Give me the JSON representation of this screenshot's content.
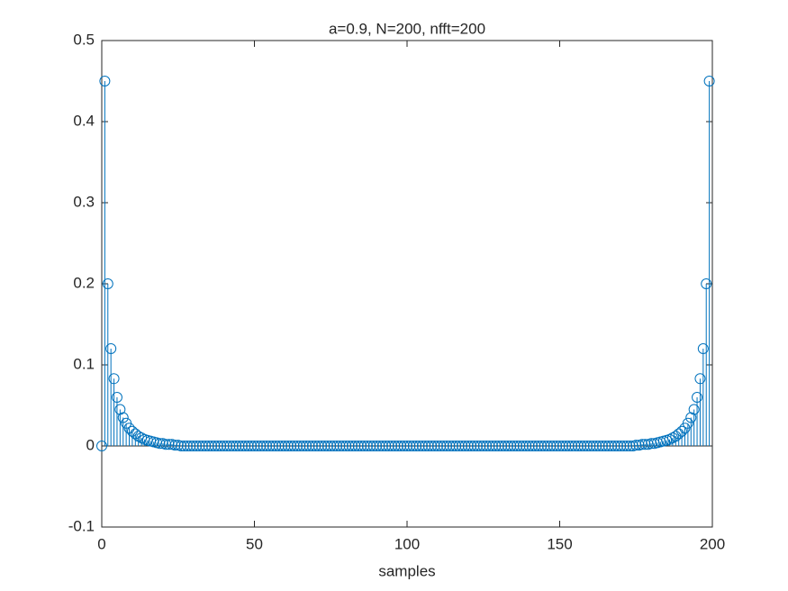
{
  "chart_data": {
    "type": "stem",
    "title": "a=0.9, N=200, nfft=200",
    "x_label": "samples",
    "x": [
      0,
      1,
      2,
      3,
      4,
      5,
      6,
      7,
      8,
      9,
      10,
      11,
      12,
      13,
      14,
      15,
      16,
      17,
      18,
      19,
      20,
      21,
      22,
      23,
      24,
      25,
      26,
      27,
      28,
      29,
      30,
      31,
      32,
      33,
      34,
      35,
      36,
      37,
      38,
      39,
      40,
      41,
      42,
      43,
      44,
      45,
      46,
      47,
      48,
      49,
      50,
      51,
      52,
      53,
      54,
      55,
      56,
      57,
      58,
      59,
      60,
      61,
      62,
      63,
      64,
      65,
      66,
      67,
      68,
      69,
      70,
      71,
      72,
      73,
      74,
      75,
      76,
      77,
      78,
      79,
      80,
      81,
      82,
      83,
      84,
      85,
      86,
      87,
      88,
      89,
      90,
      91,
      92,
      93,
      94,
      95,
      96,
      97,
      98,
      99,
      100,
      101,
      102,
      103,
      104,
      105,
      106,
      107,
      108,
      109,
      110,
      111,
      112,
      113,
      114,
      115,
      116,
      117,
      118,
      119,
      120,
      121,
      122,
      123,
      124,
      125,
      126,
      127,
      128,
      129,
      130,
      131,
      132,
      133,
      134,
      135,
      136,
      137,
      138,
      139,
      140,
      141,
      142,
      143,
      144,
      145,
      146,
      147,
      148,
      149,
      150,
      151,
      152,
      153,
      154,
      155,
      156,
      157,
      158,
      159,
      160,
      161,
      162,
      163,
      164,
      165,
      166,
      167,
      168,
      169,
      170,
      171,
      172,
      173,
      174,
      175,
      176,
      177,
      178,
      179,
      180,
      181,
      182,
      183,
      184,
      185,
      186,
      187,
      188,
      189,
      190,
      191,
      192,
      193,
      194,
      195,
      196,
      197,
      198,
      199
    ],
    "values": [
      0,
      0.45,
      0.2,
      0.12,
      0.083,
      0.06,
      0.045,
      0.035,
      0.028,
      0.022,
      0.018,
      0.015,
      0.012,
      0.01,
      0.008,
      0.007,
      0.006,
      0.005,
      0.004,
      0.003,
      0.003,
      0.002,
      0.002,
      0.002,
      0.001,
      0.001,
      0,
      0,
      0,
      0,
      0,
      0,
      0,
      0,
      0,
      0,
      0,
      0,
      0,
      0,
      0,
      0,
      0,
      0,
      0,
      0,
      0,
      0,
      0,
      0,
      0,
      0,
      0,
      0,
      0,
      0,
      0,
      0,
      0,
      0,
      0,
      0,
      0,
      0,
      0,
      0,
      0,
      0,
      0,
      0,
      0,
      0,
      0,
      0,
      0,
      0,
      0,
      0,
      0,
      0,
      0,
      0,
      0,
      0,
      0,
      0,
      0,
      0,
      0,
      0,
      0,
      0,
      0,
      0,
      0,
      0,
      0,
      0,
      0,
      0,
      0,
      0,
      0,
      0,
      0,
      0,
      0,
      0,
      0,
      0,
      0,
      0,
      0,
      0,
      0,
      0,
      0,
      0,
      0,
      0,
      0,
      0,
      0,
      0,
      0,
      0,
      0,
      0,
      0,
      0,
      0,
      0,
      0,
      0,
      0,
      0,
      0,
      0,
      0,
      0,
      0,
      0,
      0,
      0,
      0,
      0,
      0,
      0,
      0,
      0,
      0,
      0,
      0,
      0,
      0,
      0,
      0,
      0,
      0,
      0,
      0,
      0,
      0,
      0,
      0,
      0,
      0,
      0,
      0,
      0,
      0,
      0,
      0,
      0,
      0,
      0.001,
      0.001,
      0.002,
      0.002,
      0.002,
      0.003,
      0.003,
      0.004,
      0.005,
      0.006,
      0.007,
      0.008,
      0.01,
      0.012,
      0.015,
      0.018,
      0.022,
      0.028,
      0.035,
      0.045,
      0.06,
      0.083,
      0.12,
      0.2,
      0.45
    ],
    "color": "#0072bd",
    "xlim": [
      0,
      200
    ],
    "xticks": [
      0,
      50,
      100,
      150,
      200
    ],
    "ylim": [
      -0.1,
      0.5
    ],
    "yticks": [
      -0.1,
      0,
      0.1,
      0.2,
      0.3,
      0.4,
      0.5
    ]
  }
}
